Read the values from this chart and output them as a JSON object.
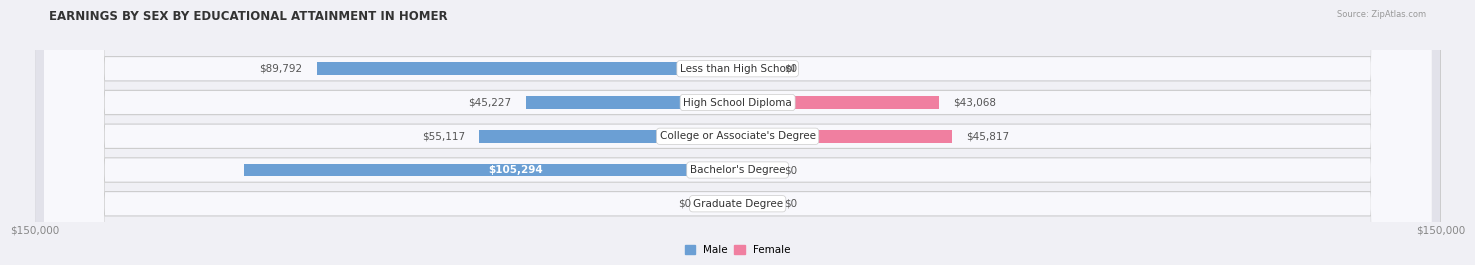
{
  "title": "EARNINGS BY SEX BY EDUCATIONAL ATTAINMENT IN HOMER",
  "source": "Source: ZipAtlas.com",
  "categories": [
    "Less than High School",
    "High School Diploma",
    "College or Associate's Degree",
    "Bachelor's Degree",
    "Graduate Degree"
  ],
  "male_values": [
    89792,
    45227,
    55117,
    105294,
    0
  ],
  "female_values": [
    0,
    43068,
    45817,
    0,
    0
  ],
  "male_color": "#6b9fd4",
  "female_color": "#f07fa0",
  "male_zero_color": "#c8d8ee",
  "female_zero_color": "#f5c0d0",
  "max_value": 150000,
  "x_tick_labels": [
    "$150,000",
    "$150,000"
  ],
  "legend_male_label": "Male",
  "legend_female_label": "Female",
  "background_color": "#f0f0f5",
  "row_bg_color": "#e2e2ea",
  "row_inner_color": "#f8f8fc",
  "title_fontsize": 8.5,
  "label_fontsize": 7.5,
  "category_fontsize": 7.5,
  "axis_fontsize": 7.5
}
